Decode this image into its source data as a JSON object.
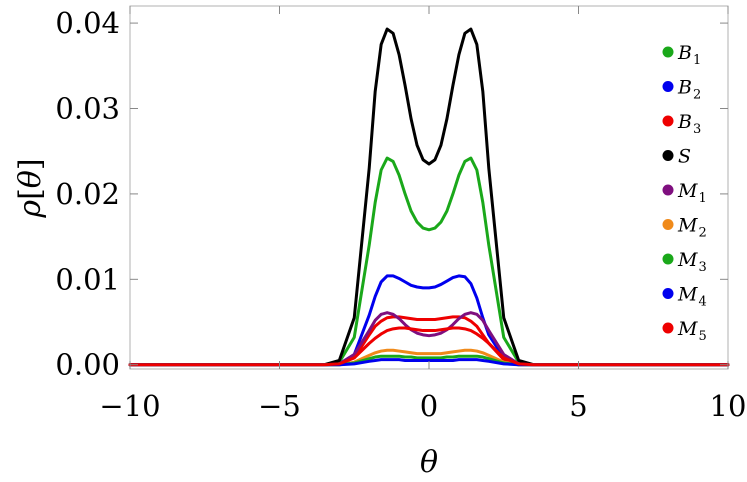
{
  "chart_data": {
    "type": "line",
    "xlabel": "θ",
    "ylabel_parts": {
      "var": "ρ",
      "open": "[",
      "arg": "θ",
      "close": "]"
    },
    "xlim": [
      -10,
      10
    ],
    "ylim": [
      -0.0005,
      0.042
    ],
    "xticks": [
      -10,
      -5,
      0,
      5,
      10
    ],
    "xtick_labels": [
      "−10",
      "−5",
      "0",
      "5",
      "10"
    ],
    "yticks": [
      0.0,
      0.01,
      0.02,
      0.03,
      0.04
    ],
    "ytick_labels": [
      "0.00",
      "0.01",
      "0.02",
      "0.03",
      "0.04"
    ],
    "grid": false,
    "legend_position": "right",
    "x": [
      -10,
      -3.5,
      -3.0,
      -2.5,
      -2.0,
      -1.8,
      -1.6,
      -1.4,
      -1.2,
      -1.0,
      -0.8,
      -0.6,
      -0.4,
      -0.2,
      0,
      0.2,
      0.4,
      0.6,
      0.8,
      1.0,
      1.2,
      1.4,
      1.6,
      1.8,
      2.0,
      2.5,
      3.0,
      3.5,
      10
    ],
    "series": [
      {
        "name": "B",
        "sub": "1",
        "color": "#1aa81a",
        "values": [
          0,
          0,
          0.0003,
          0.0032,
          0.014,
          0.019,
          0.0228,
          0.0242,
          0.0238,
          0.0222,
          0.02,
          0.018,
          0.0167,
          0.016,
          0.0158,
          0.016,
          0.0167,
          0.018,
          0.02,
          0.0222,
          0.0238,
          0.0242,
          0.0228,
          0.019,
          0.014,
          0.0032,
          0.0003,
          0,
          0
        ]
      },
      {
        "name": "B",
        "sub": "2",
        "color": "#0000ee",
        "values": [
          0,
          0,
          0.0001,
          0.0012,
          0.0058,
          0.008,
          0.0097,
          0.0104,
          0.0104,
          0.0101,
          0.0097,
          0.0093,
          0.0091,
          0.009,
          0.009,
          0.0091,
          0.0094,
          0.0098,
          0.0102,
          0.0104,
          0.0103,
          0.0095,
          0.0078,
          0.0055,
          0.0035,
          0.0008,
          0.0001,
          0,
          0
        ]
      },
      {
        "name": "B",
        "sub": "3",
        "color": "#ee0000",
        "values": [
          0,
          0,
          0.0001,
          0.0008,
          0.0035,
          0.0045,
          0.0051,
          0.0055,
          0.0056,
          0.0056,
          0.0055,
          0.0054,
          0.0053,
          0.0053,
          0.0053,
          0.0053,
          0.0054,
          0.0055,
          0.0056,
          0.0056,
          0.0055,
          0.0051,
          0.0045,
          0.0035,
          0.0025,
          0.0006,
          0.0001,
          0,
          0
        ]
      },
      {
        "name": "S",
        "sub": "",
        "color": "#000000",
        "values": [
          0,
          0,
          0.0005,
          0.0055,
          0.023,
          0.032,
          0.0375,
          0.0393,
          0.0388,
          0.0363,
          0.0327,
          0.0288,
          0.0257,
          0.024,
          0.0235,
          0.024,
          0.0257,
          0.0288,
          0.0327,
          0.0363,
          0.0388,
          0.0393,
          0.0375,
          0.032,
          0.023,
          0.0055,
          0.0005,
          0,
          0
        ]
      },
      {
        "name": "M",
        "sub": "1",
        "color": "#7f0f7f",
        "values": [
          0,
          0,
          0.0001,
          0.0012,
          0.004,
          0.0052,
          0.0059,
          0.0061,
          0.0059,
          0.0054,
          0.0047,
          0.0041,
          0.0037,
          0.0035,
          0.0034,
          0.0035,
          0.0037,
          0.0041,
          0.0047,
          0.0054,
          0.0059,
          0.0061,
          0.0059,
          0.0052,
          0.004,
          0.0012,
          0.0001,
          0,
          0
        ]
      },
      {
        "name": "M",
        "sub": "2",
        "color": "#f08a1a",
        "values": [
          0,
          0,
          0,
          0.0003,
          0.0011,
          0.0014,
          0.0016,
          0.0017,
          0.0017,
          0.0016,
          0.0015,
          0.0014,
          0.0013,
          0.0013,
          0.0013,
          0.0013,
          0.0013,
          0.0014,
          0.0015,
          0.0016,
          0.0017,
          0.0017,
          0.0016,
          0.0014,
          0.0011,
          0.0003,
          0,
          0,
          0
        ]
      },
      {
        "name": "M",
        "sub": "3",
        "color": "#1aa81a",
        "values": [
          0,
          0,
          0,
          0.0002,
          0.0007,
          0.0009,
          0.001,
          0.001,
          0.001,
          0.001,
          0.0009,
          0.0009,
          0.0008,
          0.0008,
          0.0008,
          0.0008,
          0.0008,
          0.0009,
          0.0009,
          0.001,
          0.001,
          0.001,
          0.001,
          0.0009,
          0.0007,
          0.0002,
          0,
          0,
          0
        ]
      },
      {
        "name": "M",
        "sub": "4",
        "color": "#0000ee",
        "values": [
          0,
          0,
          0,
          0.0001,
          0.0004,
          0.0005,
          0.0006,
          0.0006,
          0.0006,
          0.0006,
          0.0005,
          0.0005,
          0.0005,
          0.0005,
          0.0005,
          0.0005,
          0.0005,
          0.0005,
          0.0005,
          0.0006,
          0.0006,
          0.0006,
          0.0006,
          0.0005,
          0.0004,
          0.0001,
          0,
          0,
          0
        ]
      },
      {
        "name": "M",
        "sub": "5",
        "color": "#ee0000",
        "values": [
          0,
          0,
          0.0001,
          0.0008,
          0.0025,
          0.0031,
          0.0036,
          0.004,
          0.0042,
          0.0043,
          0.0043,
          0.0042,
          0.0041,
          0.004,
          0.004,
          0.004,
          0.0041,
          0.0042,
          0.0043,
          0.0043,
          0.0042,
          0.004,
          0.0036,
          0.0031,
          0.0025,
          0.0008,
          0.0001,
          0,
          0
        ]
      }
    ]
  }
}
